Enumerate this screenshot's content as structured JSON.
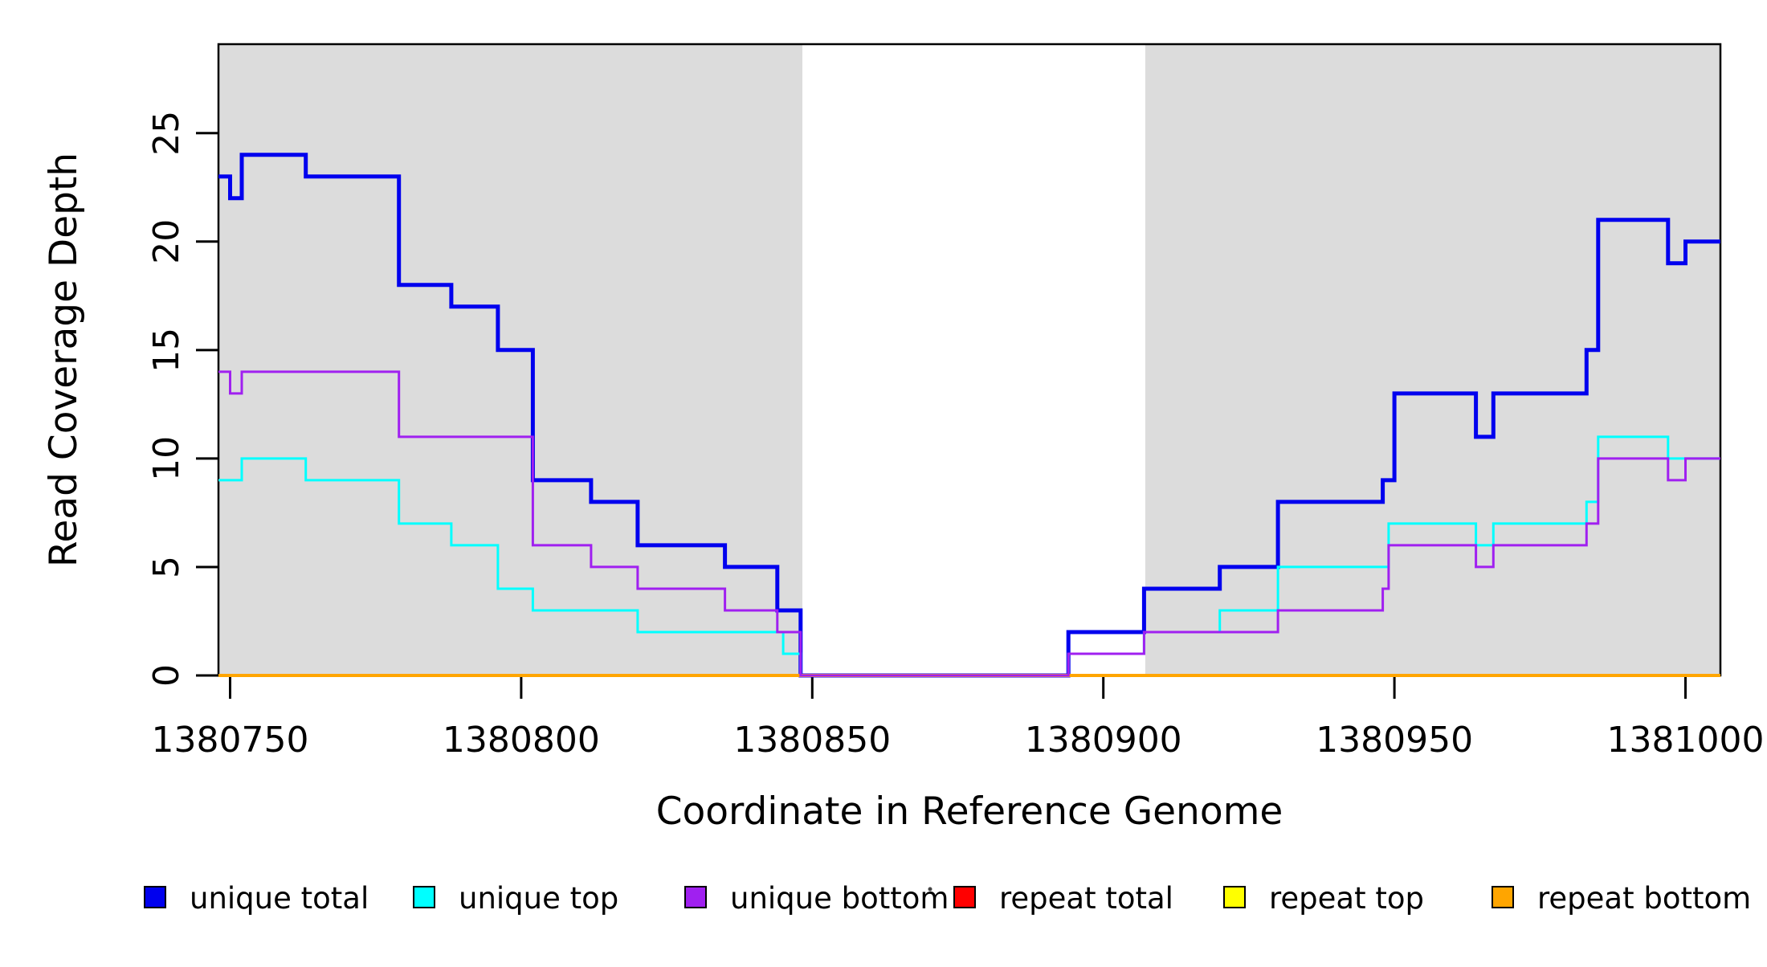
{
  "chart_data": {
    "type": "step-line",
    "title": "",
    "xlabel": "Coordinate in Reference Genome",
    "ylabel": "Read Coverage Depth",
    "xlim": [
      1380748,
      1381006
    ],
    "ylim": [
      0,
      29.1
    ],
    "x_ticks": [
      1380750,
      1380800,
      1380850,
      1380900,
      1380950,
      1381000
    ],
    "y_ticks": [
      0,
      5,
      10,
      15,
      20,
      25
    ],
    "grid": false,
    "background_shading": {
      "color": "#DCDCDC",
      "regions": [
        [
          1380748,
          1380848.3
        ],
        [
          1380907.2,
          1381006
        ]
      ]
    },
    "series": [
      {
        "name": "unique total",
        "color": "#0000EE",
        "width": 5,
        "points": [
          [
            1380748,
            23
          ],
          [
            1380750,
            22
          ],
          [
            1380752,
            24
          ],
          [
            1380763,
            23
          ],
          [
            1380779,
            18
          ],
          [
            1380788,
            17
          ],
          [
            1380796,
            15
          ],
          [
            1380802,
            9
          ],
          [
            1380812,
            8
          ],
          [
            1380820,
            6
          ],
          [
            1380835,
            5
          ],
          [
            1380844,
            3
          ],
          [
            1380848,
            0
          ],
          [
            1380894,
            2
          ],
          [
            1380907,
            4
          ],
          [
            1380920,
            5
          ],
          [
            1380930,
            8
          ],
          [
            1380948,
            9
          ],
          [
            1380950,
            13
          ],
          [
            1380964,
            11
          ],
          [
            1380967,
            13
          ],
          [
            1380983,
            15
          ],
          [
            1380985,
            21
          ],
          [
            1380997,
            19
          ],
          [
            1381000,
            20
          ]
        ]
      },
      {
        "name": "unique top",
        "color": "#00FFFF",
        "width": 3,
        "points": [
          [
            1380748,
            9
          ],
          [
            1380752,
            10
          ],
          [
            1380763,
            9
          ],
          [
            1380779,
            7
          ],
          [
            1380788,
            6
          ],
          [
            1380796,
            4
          ],
          [
            1380802,
            3
          ],
          [
            1380820,
            2
          ],
          [
            1380845,
            1
          ],
          [
            1380848,
            0
          ],
          [
            1380894,
            1
          ],
          [
            1380907,
            2
          ],
          [
            1380920,
            3
          ],
          [
            1380930,
            5
          ],
          [
            1380949,
            7
          ],
          [
            1380964,
            6
          ],
          [
            1380967,
            7
          ],
          [
            1380983,
            8
          ],
          [
            1380985,
            11
          ],
          [
            1380997,
            10
          ]
        ]
      },
      {
        "name": "unique bottom",
        "color": "#A020F0",
        "width": 3,
        "points": [
          [
            1380748,
            14
          ],
          [
            1380750,
            13
          ],
          [
            1380752,
            14
          ],
          [
            1380779,
            11
          ],
          [
            1380802,
            6
          ],
          [
            1380812,
            5
          ],
          [
            1380820,
            4
          ],
          [
            1380835,
            3
          ],
          [
            1380844,
            2
          ],
          [
            1380848,
            0
          ],
          [
            1380894,
            1
          ],
          [
            1380907,
            2
          ],
          [
            1380930,
            3
          ],
          [
            1380948,
            4
          ],
          [
            1380949,
            6
          ],
          [
            1380964,
            5
          ],
          [
            1380967,
            6
          ],
          [
            1380983,
            7
          ],
          [
            1380985,
            10
          ],
          [
            1380997,
            9
          ],
          [
            1381000,
            10
          ]
        ]
      },
      {
        "name": "repeat total",
        "color": "#FF0000",
        "width": 3,
        "points": [
          [
            1380748,
            0
          ]
        ]
      },
      {
        "name": "repeat top",
        "color": "#FFFF00",
        "width": 3,
        "points": [
          [
            1380748,
            0
          ]
        ]
      },
      {
        "name": "repeat bottom",
        "color": "#FFA500",
        "width": 4,
        "points": [
          [
            1380748,
            0
          ]
        ]
      }
    ],
    "draw_order": [
      0,
      1,
      3,
      4,
      5,
      2
    ],
    "legend_position": "bottom",
    "artifact_dot": {
      "present": true
    }
  }
}
